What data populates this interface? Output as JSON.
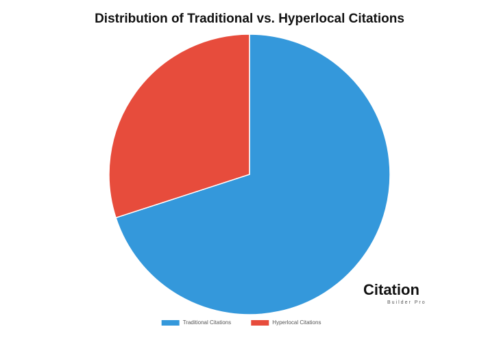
{
  "chart_data": {
    "type": "pie",
    "title": "Distribution of Traditional vs. Hyperlocal Citations",
    "categories": [
      "Traditional Citations",
      "Hyperlocal Citations"
    ],
    "values": [
      70,
      30
    ],
    "colors": [
      "#3498db",
      "#e74c3c"
    ],
    "legend": "bottom"
  },
  "watermark": {
    "name": "Citation",
    "tagline": "Builder Pro"
  }
}
